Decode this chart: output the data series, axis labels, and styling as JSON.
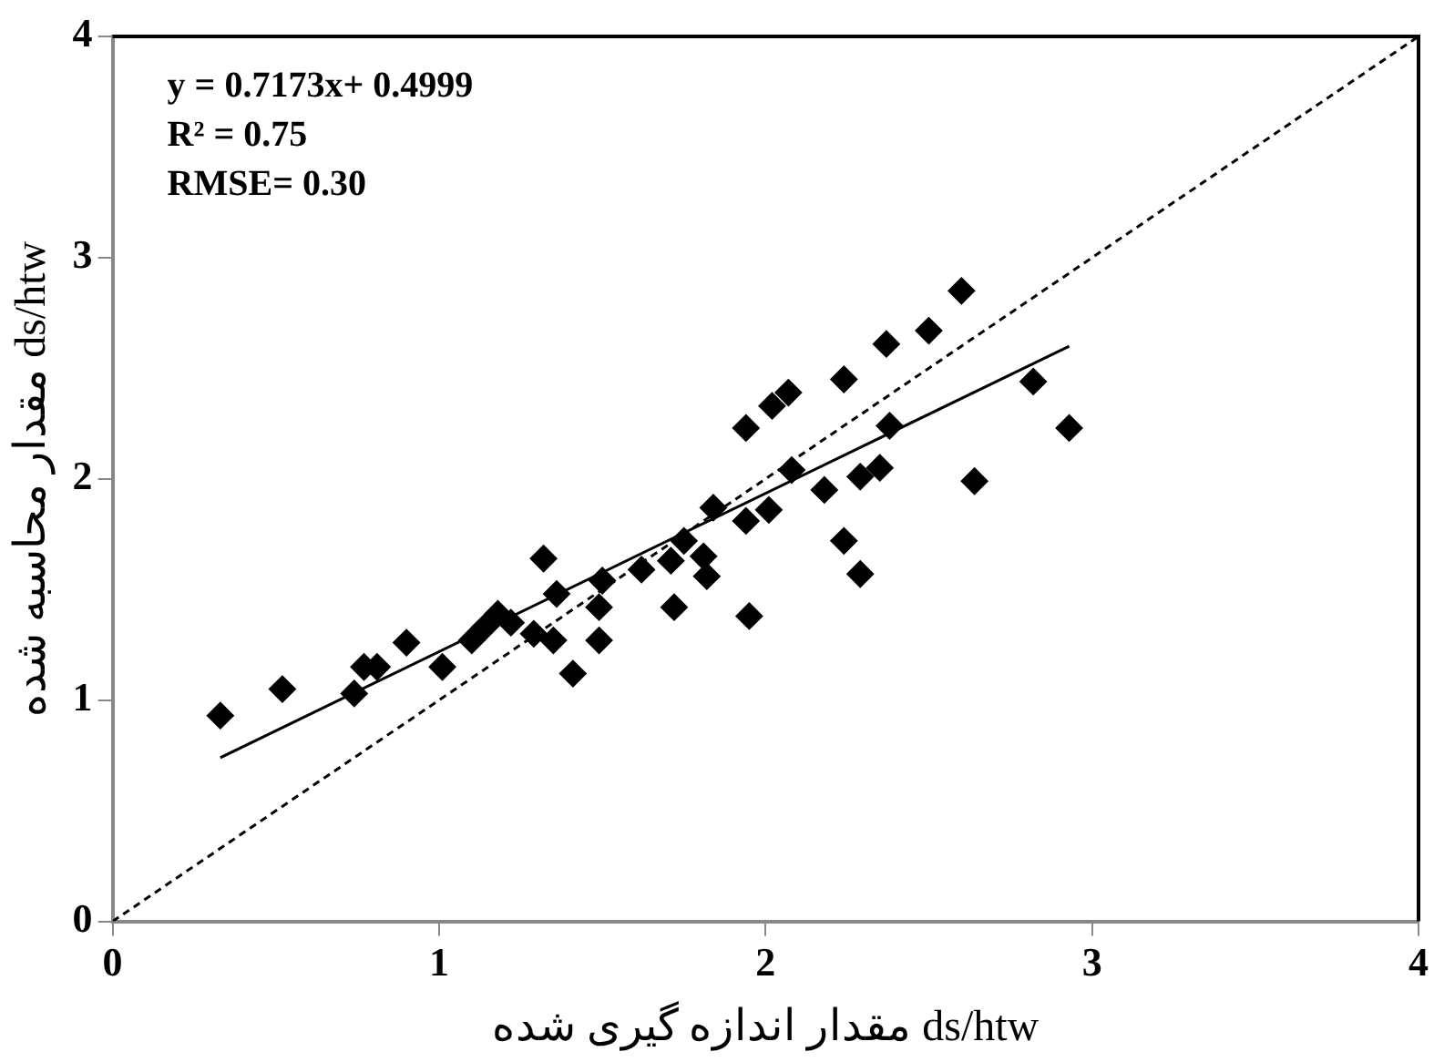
{
  "chart_data": {
    "type": "scatter",
    "xlabel": "مقدار اندازه گیری شده ds/htw",
    "ylabel": "مقدار محاسبه شده ds/htw",
    "annotations": [
      "y = 0.7173x+ 0.4999",
      "R² = 0.75",
      "RMSE= 0.30"
    ],
    "xlim": [
      0,
      4
    ],
    "xticks": [
      0,
      1,
      2,
      3,
      4
    ],
    "ylim": [
      0,
      4
    ],
    "yticks": [
      0,
      1,
      2,
      3,
      4
    ],
    "grid": false,
    "legend": false,
    "marker": "diamond",
    "series": [
      {
        "type": "scatter",
        "color": "#000000",
        "x": [
          0.33,
          0.52,
          0.74,
          0.77,
          0.81,
          0.9,
          1.01,
          1.1,
          1.14,
          1.18,
          1.22,
          1.29,
          1.32,
          1.35,
          1.36,
          1.41,
          1.49,
          1.49,
          1.5,
          1.62,
          1.71,
          1.72,
          1.75,
          1.81,
          1.82,
          1.84,
          1.94,
          1.94,
          1.95,
          2.01,
          2.02,
          2.07,
          2.08,
          2.18,
          2.24,
          2.24,
          2.29,
          2.29,
          2.35,
          2.37,
          2.38,
          2.5,
          2.6,
          2.64,
          2.82,
          2.93
        ],
        "values": [
          0.93,
          1.05,
          1.03,
          1.15,
          1.15,
          1.26,
          1.15,
          1.27,
          1.33,
          1.39,
          1.35,
          1.3,
          1.64,
          1.27,
          1.48,
          1.12,
          1.42,
          1.27,
          1.54,
          1.59,
          1.63,
          1.42,
          1.72,
          1.65,
          1.56,
          1.87,
          1.81,
          2.23,
          1.38,
          1.86,
          2.33,
          2.39,
          2.04,
          1.95,
          2.45,
          1.72,
          2.01,
          1.57,
          2.05,
          2.61,
          2.24,
          2.67,
          2.85,
          1.99,
          2.44,
          2.23
        ]
      },
      {
        "type": "line",
        "color": "#000000",
        "marker": "none",
        "line_style": "solid",
        "x": [
          0.33,
          2.93
        ],
        "values": [
          0.74,
          2.6
        ]
      },
      {
        "type": "line",
        "color": "#000000",
        "marker": "none",
        "line_style": "dashed",
        "x": [
          0,
          4
        ],
        "values": [
          0,
          4
        ]
      }
    ]
  }
}
